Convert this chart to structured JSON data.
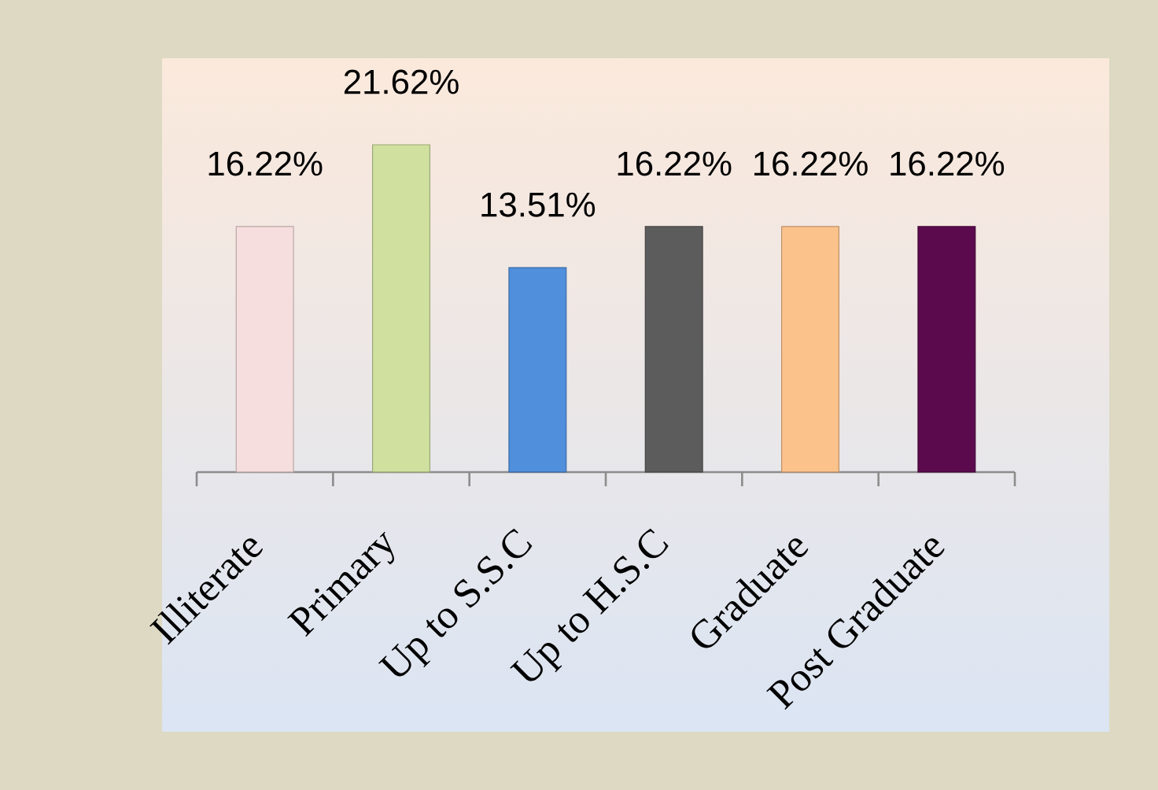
{
  "chart_data": {
    "type": "bar",
    "categories": [
      "Illiterate",
      "Primary",
      "Up to S.S.C",
      "Up to H.S.C",
      "Graduate",
      "Post Graduate"
    ],
    "values": [
      16.22,
      21.62,
      13.51,
      16.22,
      16.22,
      16.22
    ],
    "colors": [
      "#f7dede",
      "#cfe09f",
      "#4f8fdc",
      "#5c5c5c",
      "#fcc28c",
      "#5c0a4e"
    ],
    "value_labels": [
      "16.22%",
      "21.62%",
      "13.51%",
      "16.22%",
      "16.22%",
      "16.22%"
    ]
  }
}
